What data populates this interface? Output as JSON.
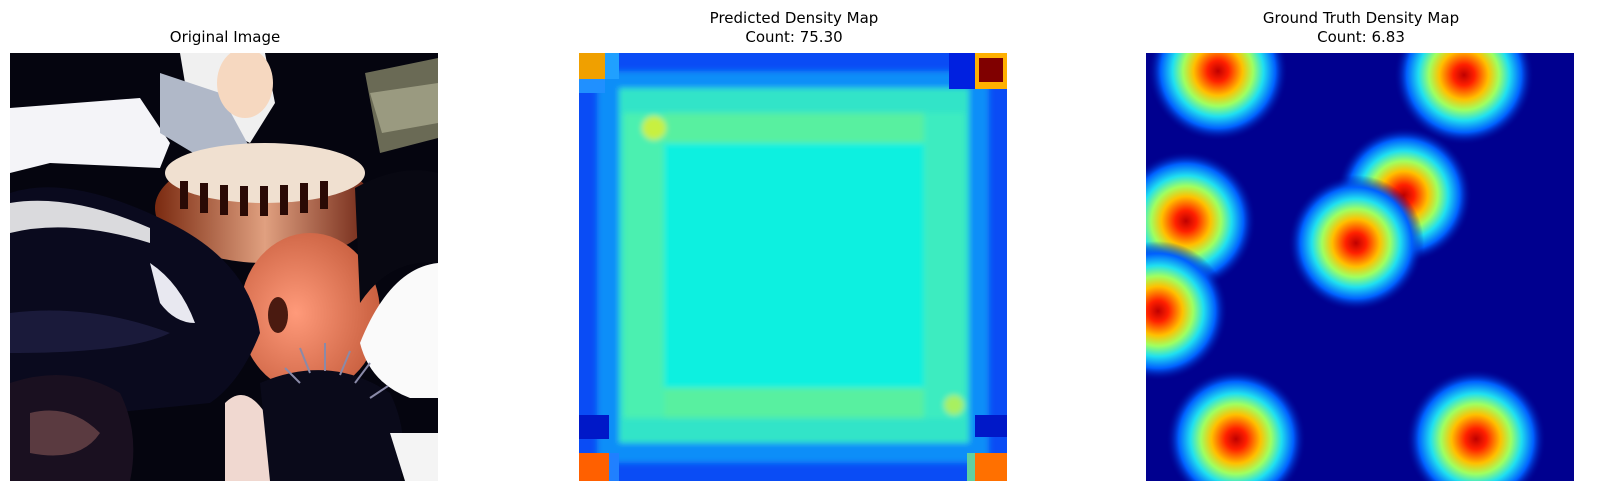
{
  "panels": [
    {
      "title": "Original Image",
      "kind": "photo"
    },
    {
      "title": "Predicted Density Map",
      "count_label": "Count: 75.30",
      "count": 75.3,
      "kind": "density-predicted",
      "colormap": "jet"
    },
    {
      "title": "Ground Truth Density Map",
      "count_label": "Count: 6.83",
      "count": 6.83,
      "kind": "density-ground-truth",
      "colormap": "jet"
    }
  ],
  "colors": {
    "jet_dark_blue": "#00008f",
    "jet_blue": "#0050ff",
    "jet_cyan": "#10f0e0",
    "jet_green": "#50f090",
    "jet_yellow": "#f0f030",
    "jet_red": "#d00000",
    "jet_dark_red": "#800000"
  }
}
